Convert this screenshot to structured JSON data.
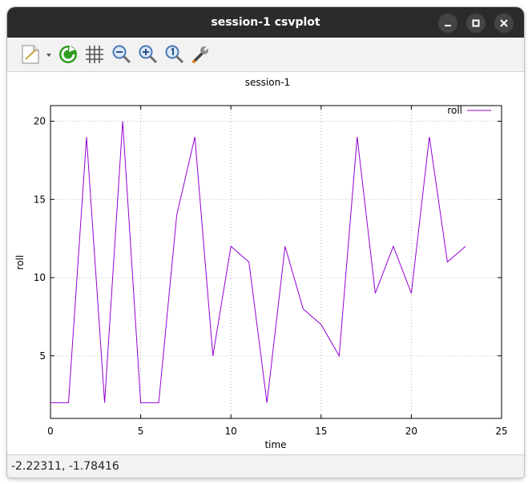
{
  "window": {
    "title": "session-1 csvplot"
  },
  "window_controls": {
    "minimize": "minimize-icon",
    "maximize": "maximize-icon",
    "close": "close-icon"
  },
  "toolbar": {
    "items": [
      "export-document-icon",
      "refresh-icon",
      "grid-icon",
      "zoom-out-icon",
      "zoom-in-icon",
      "zoom-reset-icon",
      "settings-wrench-icon"
    ]
  },
  "colors": {
    "line": "#9400d3",
    "titlebar": "#2b2b2b",
    "grid": "#b5b5b5"
  },
  "chart_data": {
    "type": "line",
    "title": "session-1",
    "xlabel": "time",
    "ylabel": "roll",
    "xlim": [
      0,
      25
    ],
    "ylim": [
      1,
      21
    ],
    "xticks": [
      0,
      5,
      10,
      15,
      20,
      25
    ],
    "yticks": [
      5,
      10,
      15,
      20
    ],
    "grid": true,
    "legend_position": "top-right",
    "series": [
      {
        "name": "roll",
        "x": [
          0,
          1,
          2,
          3,
          4,
          5,
          6,
          7,
          8,
          9,
          10,
          11,
          12,
          13,
          14,
          15,
          16,
          17,
          18,
          19,
          20,
          21,
          22,
          23
        ],
        "y": [
          2,
          2,
          19,
          2,
          20,
          2,
          2,
          14,
          19,
          5,
          12,
          11,
          2,
          12,
          8,
          7,
          5,
          19,
          9,
          12,
          9,
          19,
          11,
          12
        ]
      }
    ]
  },
  "status": {
    "coordinates": "-2.22311, -1.78416"
  }
}
